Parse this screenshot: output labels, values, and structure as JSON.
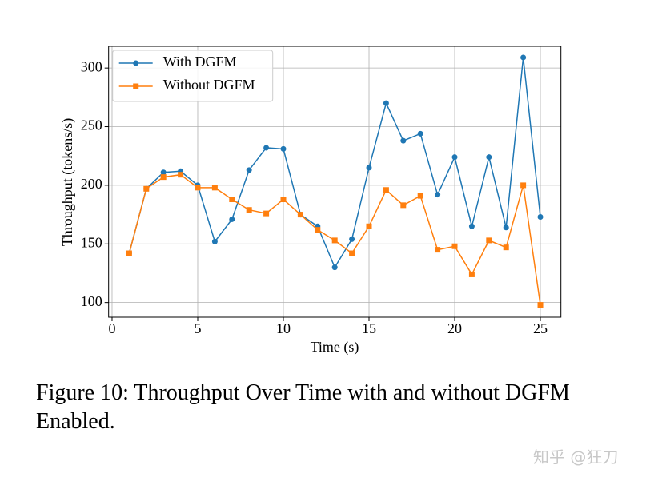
{
  "chart_data": {
    "type": "line",
    "x_label": "Time (s)",
    "y_label": "Throughput (tokens/s)",
    "x": [
      1,
      2,
      3,
      4,
      5,
      6,
      7,
      8,
      9,
      10,
      11,
      12,
      13,
      14,
      15,
      16,
      17,
      18,
      19,
      20,
      21,
      22,
      23,
      24,
      25
    ],
    "series": [
      {
        "name": "With DGFM",
        "color": "#1f77b4",
        "marker": "circle",
        "values": [
          142,
          197,
          211,
          212,
          200,
          152,
          171,
          213,
          232,
          231,
          175,
          165,
          130,
          154,
          215,
          270,
          238,
          244,
          192,
          224,
          165,
          224,
          164,
          309,
          173
        ]
      },
      {
        "name": "Without DGFM",
        "color": "#ff7f0e",
        "marker": "square",
        "values": [
          142,
          197,
          207,
          209,
          198,
          198,
          188,
          179,
          176,
          188,
          175,
          162,
          153,
          142,
          165,
          196,
          183,
          191,
          145,
          148,
          124,
          153,
          147,
          200,
          98
        ]
      }
    ],
    "xlim": [
      -0.2,
      26.2
    ],
    "xticks": [
      0,
      5,
      10,
      15,
      20,
      25
    ],
    "ylim": [
      87.5,
      318.5
    ],
    "yticks": [
      100,
      150,
      200,
      250,
      300
    ],
    "grid": true,
    "legend": "upper-left",
    "caption": "Figure 10: Throughput Over Time with and without DGFM Enabled."
  },
  "watermark": "知乎 @狂刀"
}
